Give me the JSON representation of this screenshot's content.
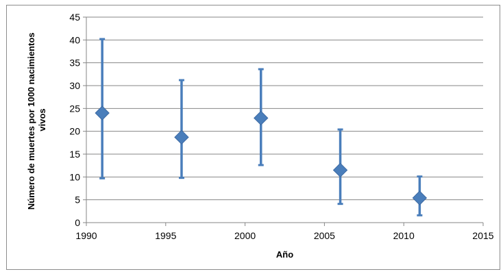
{
  "chart_data": {
    "type": "scatter",
    "xlabel": "Año",
    "ylabel_lines": [
      "Número  de muertes por 1000 nacimientos",
      "vivos"
    ],
    "xlim": [
      1990,
      2015
    ],
    "ylim": [
      0,
      45
    ],
    "xticks": [
      1990,
      1995,
      2000,
      2005,
      2010,
      2015
    ],
    "yticks": [
      0,
      5,
      10,
      15,
      20,
      25,
      30,
      35,
      40,
      45
    ],
    "grid": "horizontal",
    "marker": "diamond",
    "color": "#4a7ebb",
    "points": [
      {
        "x": 1991,
        "y": 24.0,
        "low": 9.7,
        "high": 40.2
      },
      {
        "x": 1996,
        "y": 18.7,
        "low": 9.8,
        "high": 31.2
      },
      {
        "x": 2001,
        "y": 22.9,
        "low": 12.6,
        "high": 33.6
      },
      {
        "x": 2006,
        "y": 11.5,
        "low": 4.1,
        "high": 20.4
      },
      {
        "x": 2011,
        "y": 5.4,
        "low": 1.6,
        "high": 10.1
      }
    ]
  }
}
